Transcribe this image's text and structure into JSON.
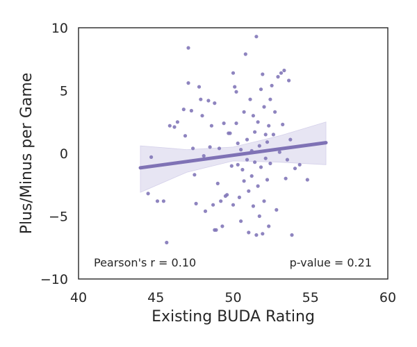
{
  "chart_data": {
    "type": "scatter",
    "xlabel": "Existing BUDA Rating",
    "ylabel": "Plus/Minus per Game",
    "xlim": [
      40,
      60
    ],
    "ylim": [
      -10,
      10
    ],
    "xticks": [
      "40",
      "45",
      "50",
      "55",
      "60"
    ],
    "yticks": [
      "10",
      "5",
      "0",
      "−5",
      "−10"
    ],
    "grid": false,
    "annotations": {
      "pearson": "Pearson's r = 0.10",
      "pvalue": "p-value = 0.21"
    },
    "colors": {
      "points": "#8277b8",
      "regression_line": "#7f72b5",
      "confidence_band": "#e3e1f1",
      "axes": "#262626"
    },
    "regression": {
      "x_start": 44.0,
      "y_start": -1.15,
      "x_end": 56.0,
      "y_end": 0.85,
      "band": [
        {
          "x": 44.0,
          "lower": -3.1,
          "upper": 0.6
        },
        {
          "x": 47.0,
          "lower": -1.5,
          "upper": 0.3
        },
        {
          "x": 50.0,
          "lower": -0.6,
          "upper": 0.5
        },
        {
          "x": 53.0,
          "lower": -0.7,
          "upper": 1.4
        },
        {
          "x": 56.0,
          "lower": -0.9,
          "upper": 2.5
        }
      ]
    },
    "points": [
      {
        "x": 44.5,
        "y": -3.2
      },
      {
        "x": 44.7,
        "y": -0.3
      },
      {
        "x": 45.1,
        "y": -3.8
      },
      {
        "x": 45.5,
        "y": -3.8
      },
      {
        "x": 45.7,
        "y": -7.1
      },
      {
        "x": 45.9,
        "y": 2.2
      },
      {
        "x": 46.2,
        "y": 2.1
      },
      {
        "x": 46.4,
        "y": 2.5
      },
      {
        "x": 46.8,
        "y": 3.5
      },
      {
        "x": 46.9,
        "y": 1.4
      },
      {
        "x": 47.1,
        "y": 8.4
      },
      {
        "x": 47.1,
        "y": 5.6
      },
      {
        "x": 47.3,
        "y": 3.4
      },
      {
        "x": 47.4,
        "y": 0.4
      },
      {
        "x": 47.5,
        "y": -1.7
      },
      {
        "x": 47.6,
        "y": -4.0
      },
      {
        "x": 47.8,
        "y": 5.3
      },
      {
        "x": 47.9,
        "y": 4.3
      },
      {
        "x": 48.0,
        "y": 3.0
      },
      {
        "x": 48.1,
        "y": -0.2
      },
      {
        "x": 48.2,
        "y": -4.6
      },
      {
        "x": 48.4,
        "y": 4.2
      },
      {
        "x": 48.5,
        "y": 0.5
      },
      {
        "x": 48.6,
        "y": 2.2
      },
      {
        "x": 48.7,
        "y": -4.1
      },
      {
        "x": 48.8,
        "y": -6.1
      },
      {
        "x": 48.8,
        "y": 4.0
      },
      {
        "x": 48.9,
        "y": -6.1
      },
      {
        "x": 49.0,
        "y": -2.4
      },
      {
        "x": 49.1,
        "y": 0.4
      },
      {
        "x": 49.2,
        "y": -3.8
      },
      {
        "x": 49.3,
        "y": -5.8
      },
      {
        "x": 49.4,
        "y": 2.4
      },
      {
        "x": 49.5,
        "y": -3.4
      },
      {
        "x": 49.6,
        "y": -3.3
      },
      {
        "x": 49.7,
        "y": 1.6
      },
      {
        "x": 49.8,
        "y": 1.6
      },
      {
        "x": 49.9,
        "y": -1.0
      },
      {
        "x": 50.0,
        "y": -4.1
      },
      {
        "x": 50.0,
        "y": 6.4
      },
      {
        "x": 50.1,
        "y": 5.3
      },
      {
        "x": 50.2,
        "y": 4.9
      },
      {
        "x": 50.2,
        "y": 2.4
      },
      {
        "x": 50.3,
        "y": 0.8
      },
      {
        "x": 50.3,
        "y": -0.9
      },
      {
        "x": 50.4,
        "y": -3.5
      },
      {
        "x": 50.5,
        "y": -5.4
      },
      {
        "x": 50.5,
        "y": 0.3
      },
      {
        "x": 50.6,
        "y": -1.3
      },
      {
        "x": 50.7,
        "y": 3.3
      },
      {
        "x": 50.7,
        "y": -2.2
      },
      {
        "x": 50.8,
        "y": 7.9
      },
      {
        "x": 50.9,
        "y": 1.1
      },
      {
        "x": 50.9,
        "y": -0.5
      },
      {
        "x": 51.0,
        "y": -6.3
      },
      {
        "x": 51.0,
        "y": -3.0
      },
      {
        "x": 51.1,
        "y": 4.3
      },
      {
        "x": 51.2,
        "y": 0.2
      },
      {
        "x": 51.2,
        "y": -1.8
      },
      {
        "x": 51.3,
        "y": 3.0
      },
      {
        "x": 51.3,
        "y": -4.2
      },
      {
        "x": 51.4,
        "y": 1.7
      },
      {
        "x": 51.4,
        "y": -0.7
      },
      {
        "x": 51.5,
        "y": 9.3
      },
      {
        "x": 51.5,
        "y": -6.5
      },
      {
        "x": 51.6,
        "y": 2.5
      },
      {
        "x": 51.6,
        "y": -2.6
      },
      {
        "x": 51.7,
        "y": 0.6
      },
      {
        "x": 51.7,
        "y": -5.0
      },
      {
        "x": 51.8,
        "y": 5.1
      },
      {
        "x": 51.8,
        "y": -1.1
      },
      {
        "x": 51.9,
        "y": 6.3
      },
      {
        "x": 51.9,
        "y": -6.4
      },
      {
        "x": 52.0,
        "y": 3.7
      },
      {
        "x": 52.0,
        "y": -3.8
      },
      {
        "x": 52.1,
        "y": 1.5
      },
      {
        "x": 52.1,
        "y": -0.4
      },
      {
        "x": 52.2,
        "y": 0.9
      },
      {
        "x": 52.2,
        "y": -2.1
      },
      {
        "x": 52.3,
        "y": 2.2
      },
      {
        "x": 52.3,
        "y": -5.8
      },
      {
        "x": 52.4,
        "y": 4.3
      },
      {
        "x": 52.4,
        "y": -0.8
      },
      {
        "x": 52.5,
        "y": 5.4
      },
      {
        "x": 52.6,
        "y": 1.5
      },
      {
        "x": 52.7,
        "y": 3.3
      },
      {
        "x": 52.8,
        "y": -4.5
      },
      {
        "x": 52.9,
        "y": 6.1
      },
      {
        "x": 53.0,
        "y": 0.1
      },
      {
        "x": 53.1,
        "y": 6.4
      },
      {
        "x": 53.2,
        "y": 2.3
      },
      {
        "x": 53.3,
        "y": 6.6
      },
      {
        "x": 53.4,
        "y": -2.0
      },
      {
        "x": 53.5,
        "y": -0.5
      },
      {
        "x": 53.6,
        "y": 5.8
      },
      {
        "x": 53.7,
        "y": 1.1
      },
      {
        "x": 53.8,
        "y": -6.5
      },
      {
        "x": 54.0,
        "y": -1.2
      },
      {
        "x": 54.3,
        "y": -0.9
      },
      {
        "x": 54.8,
        "y": -2.1
      }
    ]
  }
}
